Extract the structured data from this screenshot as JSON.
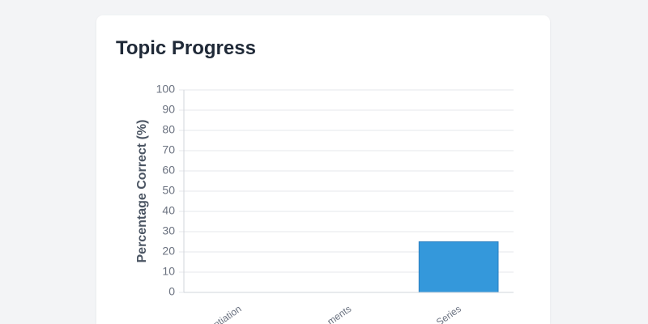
{
  "chart_data": {
    "type": "bar",
    "title": "Topic Progress",
    "y_label": "Percentage Correct (%)",
    "categories": [
      "ntiation",
      "ments",
      "Series"
    ],
    "values": [
      0,
      0,
      25
    ],
    "color": "#3498db",
    "ylim": [
      0,
      100
    ],
    "yticks": [
      0,
      10,
      20,
      30,
      40,
      50,
      60,
      70,
      80,
      90,
      100
    ],
    "grid": true
  }
}
